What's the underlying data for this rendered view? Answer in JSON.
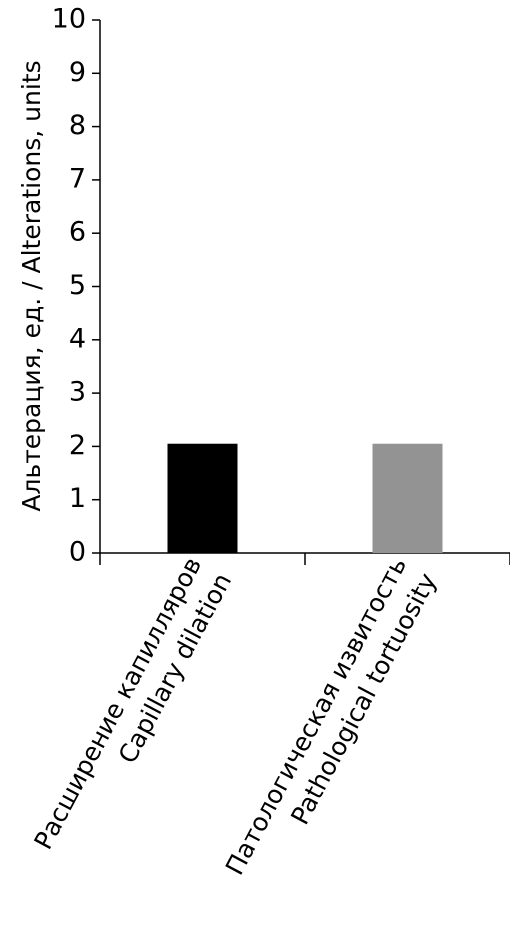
{
  "chart_data": {
    "type": "bar",
    "categories": [
      [
        "Расширение капилляров",
        "Capillary dilation"
      ],
      [
        "Патологическая извитость",
        "Pathological tortuosity"
      ]
    ],
    "values": [
      2.05,
      2.05
    ],
    "bar_colors": [
      "#000000",
      "#939393"
    ],
    "ylabel": "Альтерация, ед. / Alterations, units",
    "ylim": [
      0,
      10
    ],
    "yticks": [
      "0",
      "1",
      "2",
      "3",
      "4",
      "5",
      "6",
      "7",
      "8",
      "9",
      "10"
    ],
    "grid": false,
    "legend": "none"
  }
}
